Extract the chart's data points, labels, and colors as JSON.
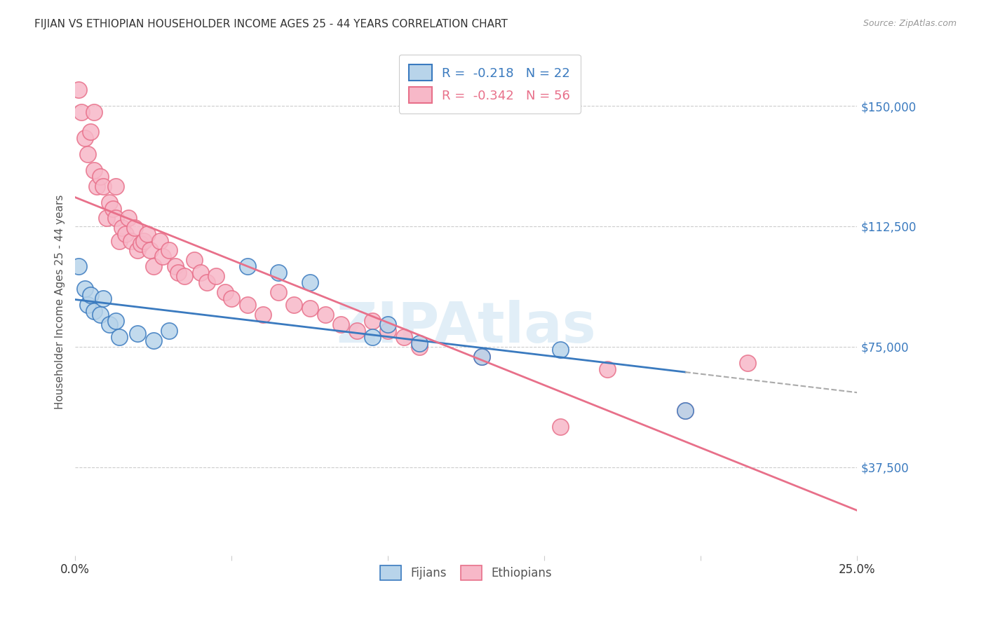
{
  "title": "FIJIAN VS ETHIOPIAN HOUSEHOLDER INCOME AGES 25 - 44 YEARS CORRELATION CHART",
  "source": "Source: ZipAtlas.com",
  "ylabel": "Householder Income Ages 25 - 44 years",
  "yticks": [
    37500,
    75000,
    112500,
    150000
  ],
  "ytick_labels": [
    "$37,500",
    "$75,000",
    "$112,500",
    "$150,000"
  ],
  "xmin": 0.0,
  "xmax": 0.25,
  "ymin": 10000,
  "ymax": 168000,
  "fijian_color": "#b8d4ea",
  "ethiopian_color": "#f7b8c8",
  "line_fijian_color": "#3a7abf",
  "line_ethiopian_color": "#e8708a",
  "r_fijian": "-0.218",
  "n_fijian": "22",
  "r_ethiopian": "-0.342",
  "n_ethiopian": "56",
  "legend_label_fijian": "Fijians",
  "legend_label_ethiopian": "Ethiopians",
  "watermark": "ZIPAtlas",
  "fijian_x": [
    0.001,
    0.003,
    0.004,
    0.005,
    0.006,
    0.008,
    0.009,
    0.011,
    0.013,
    0.014,
    0.02,
    0.025,
    0.03,
    0.055,
    0.065,
    0.075,
    0.095,
    0.1,
    0.11,
    0.13,
    0.155,
    0.195
  ],
  "fijian_y": [
    100000,
    93000,
    88000,
    91000,
    86000,
    85000,
    90000,
    82000,
    83000,
    78000,
    79000,
    77000,
    80000,
    100000,
    98000,
    95000,
    78000,
    82000,
    76000,
    72000,
    74000,
    55000
  ],
  "ethiopian_x": [
    0.001,
    0.002,
    0.003,
    0.004,
    0.005,
    0.006,
    0.006,
    0.007,
    0.008,
    0.009,
    0.01,
    0.011,
    0.012,
    0.013,
    0.013,
    0.014,
    0.015,
    0.016,
    0.017,
    0.018,
    0.019,
    0.02,
    0.021,
    0.022,
    0.023,
    0.024,
    0.025,
    0.027,
    0.028,
    0.03,
    0.032,
    0.033,
    0.035,
    0.038,
    0.04,
    0.042,
    0.045,
    0.048,
    0.05,
    0.055,
    0.06,
    0.065,
    0.07,
    0.075,
    0.08,
    0.085,
    0.09,
    0.095,
    0.1,
    0.105,
    0.11,
    0.13,
    0.155,
    0.17,
    0.195,
    0.215
  ],
  "ethiopian_y": [
    155000,
    148000,
    140000,
    135000,
    142000,
    148000,
    130000,
    125000,
    128000,
    125000,
    115000,
    120000,
    118000,
    125000,
    115000,
    108000,
    112000,
    110000,
    115000,
    108000,
    112000,
    105000,
    107000,
    108000,
    110000,
    105000,
    100000,
    108000,
    103000,
    105000,
    100000,
    98000,
    97000,
    102000,
    98000,
    95000,
    97000,
    92000,
    90000,
    88000,
    85000,
    92000,
    88000,
    87000,
    85000,
    82000,
    80000,
    83000,
    80000,
    78000,
    75000,
    72000,
    50000,
    68000,
    55000,
    70000
  ],
  "blue_line_x_start": 0.0,
  "blue_line_x_solid_end": 0.195,
  "blue_line_x_dash_end": 0.25,
  "pink_line_x_start": 0.0,
  "pink_line_x_end": 0.25
}
